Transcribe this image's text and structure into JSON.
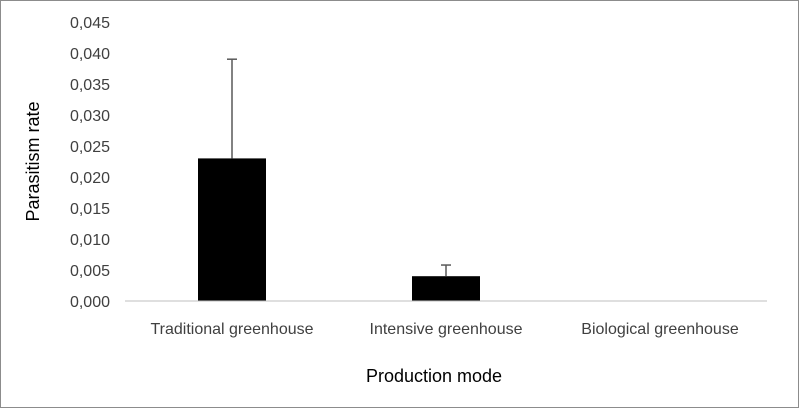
{
  "chart_data": {
    "type": "bar",
    "categories": [
      "Traditional greenhouse",
      "Intensive greenhouse",
      "Biological greenhouse"
    ],
    "values": [
      0.023,
      0.004,
      0.0
    ],
    "error_plus": [
      0.016,
      0.0018,
      0.0
    ],
    "xlabel": "Production mode",
    "ylabel": "Parasitism rate",
    "ylim": [
      0,
      0.045
    ],
    "y_ticks": [
      "0,000",
      "0,005",
      "0,010",
      "0,015",
      "0,020",
      "0,025",
      "0,030",
      "0,035",
      "0,040",
      "0,045"
    ],
    "grid": false,
    "legend": "none",
    "bar_color": "#000000",
    "errorbar_color": "#595959",
    "axis_color": "#bfbfbf"
  }
}
